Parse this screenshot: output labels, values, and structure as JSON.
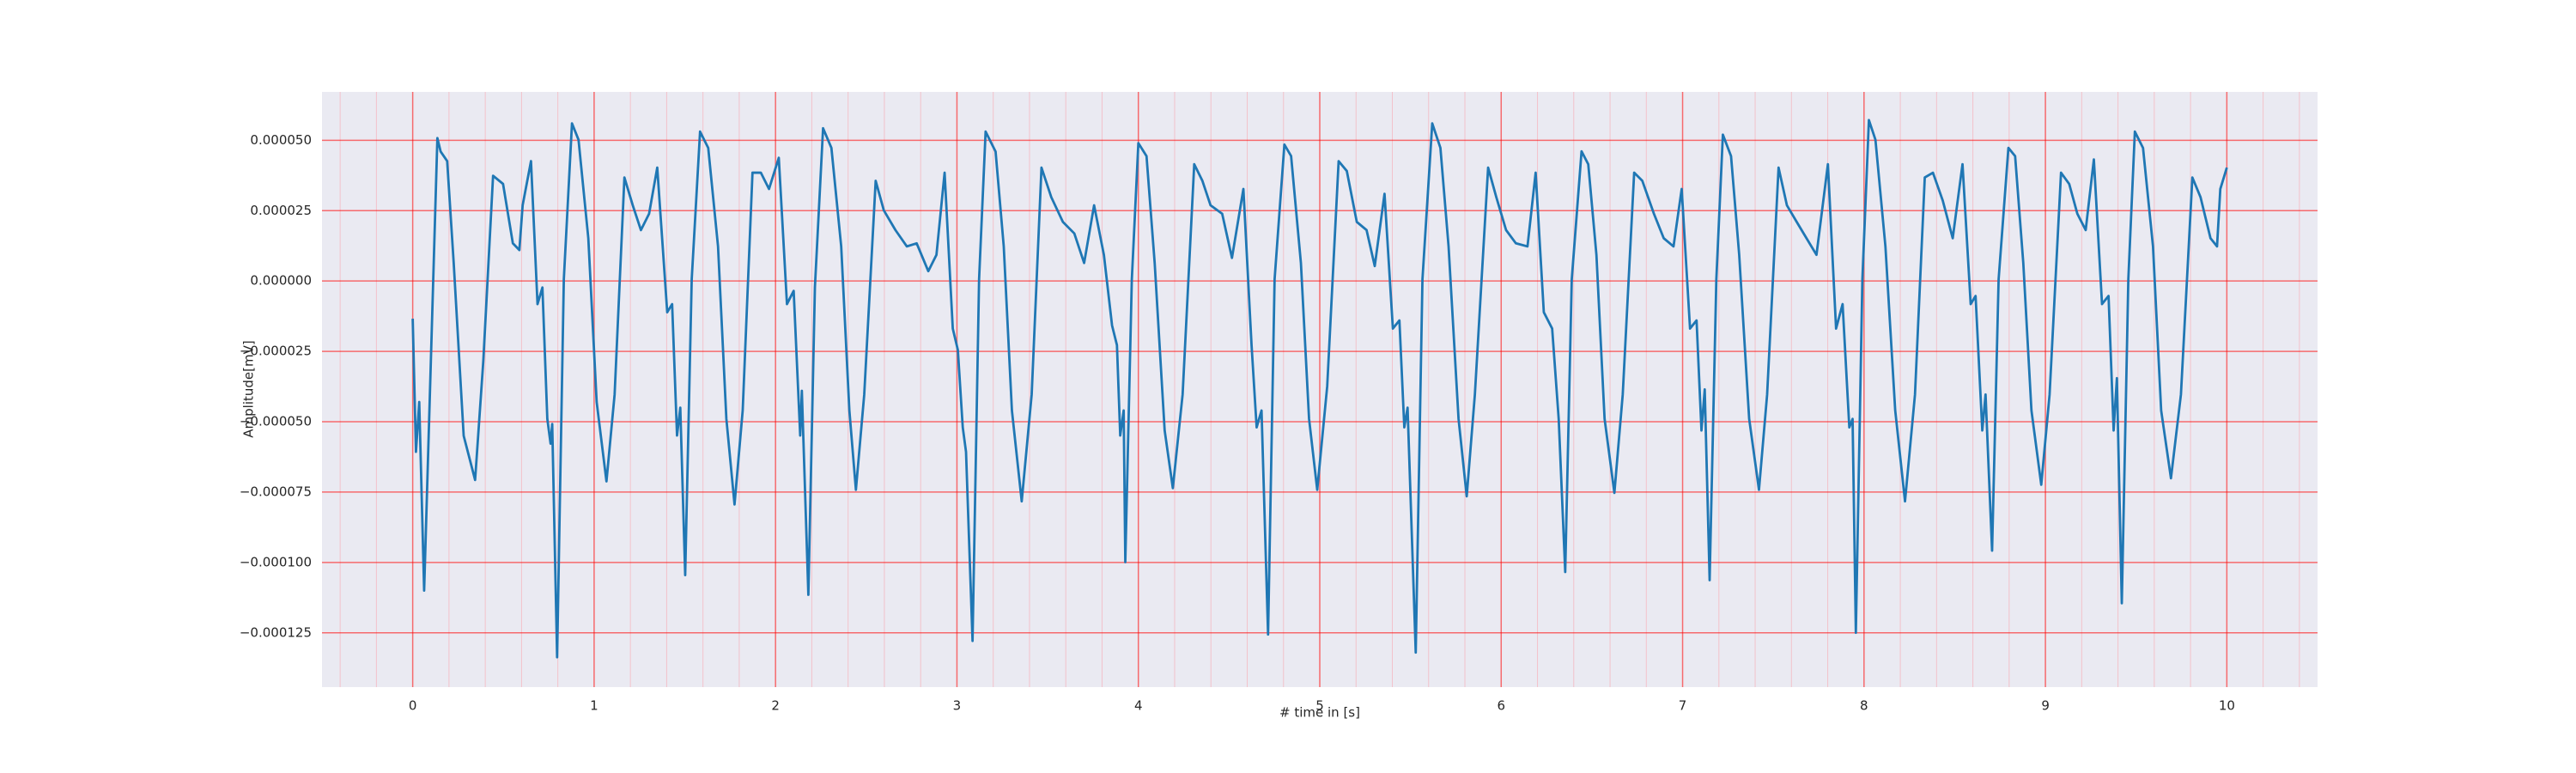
{
  "chart_data": {
    "type": "line",
    "xlabel": "# time in [s]",
    "ylabel": "Amplitude[mV]",
    "color": "#1f77b4",
    "grid": true,
    "minor_grid": true,
    "xlim": [
      -0.5,
      10.5
    ],
    "ylim": [
      -0.0001443,
      6.72e-05
    ],
    "xticks": [
      0,
      1,
      2,
      3,
      4,
      5,
      6,
      7,
      8,
      9,
      10
    ],
    "yticks": [
      {
        "value": 5e-05,
        "label": "0.000050"
      },
      {
        "value": 2.5e-05,
        "label": "0.000025"
      },
      {
        "value": 0,
        "label": "0.000000"
      },
      {
        "value": -2.5e-05,
        "label": "−0.000025"
      },
      {
        "value": -5e-05,
        "label": "−0.000050"
      },
      {
        "value": -7.5e-05,
        "label": "−0.000075"
      },
      {
        "value": -0.0001,
        "label": "−0.000100"
      },
      {
        "value": -0.000125,
        "label": "−0.000125"
      }
    ],
    "x": [
      0,
      0.018,
      0.036,
      0.063,
      0.1,
      0.136,
      0.154,
      0.19,
      0.226,
      0.281,
      0.344,
      0.389,
      0.443,
      0.498,
      0.552,
      0.588,
      0.606,
      0.652,
      0.688,
      0.715,
      0.742,
      0.76,
      0.769,
      0.796,
      0.833,
      0.878,
      0.914,
      0.968,
      1.014,
      1.068,
      1.113,
      1.167,
      1.213,
      1.258,
      1.303,
      1.348,
      1.403,
      1.43,
      1.457,
      1.475,
      1.502,
      1.538,
      1.584,
      1.629,
      1.683,
      1.729,
      1.774,
      1.819,
      1.873,
      1.919,
      1.964,
      2.018,
      2.063,
      2.1,
      2.136,
      2.145,
      2.181,
      2.217,
      2.262,
      2.308,
      2.362,
      2.407,
      2.443,
      2.489,
      2.552,
      2.597,
      2.661,
      2.724,
      2.778,
      2.842,
      2.887,
      2.932,
      2.977,
      3.005,
      3.032,
      3.05,
      3.086,
      3.122,
      3.158,
      3.213,
      3.258,
      3.303,
      3.357,
      3.412,
      3.466,
      3.52,
      3.584,
      3.647,
      3.701,
      3.756,
      3.81,
      3.855,
      3.882,
      3.9,
      3.919,
      3.928,
      3.964,
      4,
      4.045,
      4.09,
      4.145,
      4.19,
      4.244,
      4.308,
      4.353,
      4.398,
      4.462,
      4.516,
      4.579,
      4.624,
      4.652,
      4.679,
      4.715,
      4.751,
      4.805,
      4.842,
      4.896,
      4.941,
      4.986,
      5.041,
      5.104,
      5.149,
      5.204,
      5.258,
      5.303,
      5.357,
      5.403,
      5.439,
      5.466,
      5.484,
      5.529,
      5.566,
      5.62,
      5.665,
      5.71,
      5.765,
      5.81,
      5.855,
      5.928,
      5.973,
      6.027,
      6.081,
      6.145,
      6.19,
      6.235,
      6.281,
      6.317,
      6.353,
      6.389,
      6.443,
      6.48,
      6.525,
      6.57,
      6.624,
      6.67,
      6.733,
      6.778,
      6.842,
      6.896,
      6.95,
      6.995,
      7.041,
      7.077,
      7.104,
      7.122,
      7.149,
      7.186,
      7.222,
      7.267,
      7.312,
      7.367,
      7.421,
      7.466,
      7.529,
      7.575,
      7.629,
      7.683,
      7.738,
      7.801,
      7.846,
      7.882,
      7.919,
      7.937,
      7.955,
      7.991,
      8.027,
      8.063,
      8.118,
      8.172,
      8.226,
      8.281,
      8.335,
      8.38,
      8.434,
      8.489,
      8.543,
      8.588,
      8.615,
      8.652,
      8.67,
      8.706,
      8.742,
      8.796,
      8.833,
      8.878,
      8.923,
      8.977,
      9.023,
      9.086,
      9.131,
      9.176,
      9.222,
      9.267,
      9.312,
      9.348,
      9.376,
      9.394,
      9.421,
      9.457,
      9.493,
      9.538,
      9.593,
      9.638,
      9.692,
      9.747,
      9.81,
      9.855,
      9.91,
      9.946,
      9.964,
      10
    ],
    "values": [
      -1.34e-05,
      -6.07e-05,
      -4.3e-05,
      -0.00011,
      -2.86e-05,
      5.08e-05,
      4.6e-05,
      4.26e-05,
      6.4e-06,
      -5.5e-05,
      -7.07e-05,
      -2.86e-05,
      3.74e-05,
      3.45e-05,
      1.34e-05,
      1.1e-05,
      2.69e-05,
      4.26e-05,
      -8.2e-06,
      -2.3e-06,
      -4.9e-05,
      -5.78e-05,
      -5.08e-05,
      -0.0001337,
      6e-07,
      5.6e-05,
      5.02e-05,
      1.52e-05,
      -4.3e-05,
      -7.12e-05,
      -4.03e-05,
      3.68e-05,
      2.69e-05,
      1.81e-05,
      2.39e-05,
      4.03e-05,
      -1.11e-05,
      -8.2e-06,
      -5.49e-05,
      -4.5e-05,
      -0.0001045,
      6e-07,
      5.31e-05,
      4.73e-05,
      1.23e-05,
      -4.9e-05,
      -7.94e-05,
      -4.6e-05,
      3.85e-05,
      3.85e-05,
      3.27e-05,
      4.38e-05,
      -8.2e-06,
      -3.5e-06,
      -5.49e-05,
      -3.9e-05,
      -0.0001115,
      -2.3e-06,
      5.43e-05,
      4.73e-05,
      1.23e-05,
      -4.6e-05,
      -7.42e-05,
      -4.03e-05,
      3.56e-05,
      2.51e-05,
      1.81e-05,
      1.23e-05,
      1.34e-05,
      3.5e-06,
      9.3e-06,
      3.85e-05,
      -1.69e-05,
      -2.45e-05,
      -5.2e-05,
      -6.07e-05,
      -0.0001279,
      6e-07,
      5.31e-05,
      4.6e-05,
      1.23e-05,
      -4.6e-05,
      -7.83e-05,
      -4.03e-05,
      4.03e-05,
      2.98e-05,
      2.1e-05,
      1.69e-05,
      6.4e-06,
      2.69e-05,
      9.3e-06,
      -1.58e-05,
      -2.28e-05,
      -5.49e-05,
      -4.6e-05,
      -9.99e-05,
      6e-07,
      4.9e-05,
      4.44e-05,
      6.4e-06,
      -5.31e-05,
      -7.36e-05,
      -4.03e-05,
      4.15e-05,
      3.56e-05,
      2.69e-05,
      2.39e-05,
      8.2e-06,
      3.27e-05,
      -2.28e-05,
      -5.2e-05,
      -4.6e-05,
      -0.0001256,
      6e-07,
      4.85e-05,
      4.44e-05,
      6.4e-06,
      -4.9e-05,
      -7.42e-05,
      -3.74e-05,
      4.26e-05,
      3.91e-05,
      2.1e-05,
      1.81e-05,
      5.3e-06,
      3.1e-05,
      -1.69e-05,
      -1.4e-05,
      -5.2e-05,
      -4.5e-05,
      -0.000132,
      6e-07,
      5.6e-05,
      4.73e-05,
      1.23e-05,
      -4.9e-05,
      -7.65e-05,
      -4.03e-05,
      4.03e-05,
      2.98e-05,
      1.81e-05,
      1.34e-05,
      1.23e-05,
      3.85e-05,
      -1.11e-05,
      -1.69e-05,
      -4.9e-05,
      -0.0001034,
      6e-07,
      4.61e-05,
      4.15e-05,
      9.3e-06,
      -4.9e-05,
      -7.53e-05,
      -4.03e-05,
      3.85e-05,
      3.56e-05,
      2.39e-05,
      1.52e-05,
      1.23e-05,
      3.27e-05,
      -1.69e-05,
      -1.4e-05,
      -5.31e-05,
      -3.85e-05,
      -0.0001063,
      6e-07,
      5.2e-05,
      4.44e-05,
      9.3e-06,
      -4.9e-05,
      -7.42e-05,
      -4.03e-05,
      4.03e-05,
      2.69e-05,
      2.1e-05,
      1.52e-05,
      9.3e-06,
      4.15e-05,
      -1.69e-05,
      -8.2e-06,
      -5.2e-05,
      -4.9e-05,
      -0.000125,
      6e-07,
      5.72e-05,
      5.02e-05,
      1.23e-05,
      -4.6e-05,
      -7.83e-05,
      -4.03e-05,
      3.68e-05,
      3.85e-05,
      2.86e-05,
      1.52e-05,
      4.15e-05,
      -8.2e-06,
      -5.3e-06,
      -5.31e-05,
      -4.03e-05,
      -9.58e-05,
      6e-07,
      4.73e-05,
      4.44e-05,
      6.4e-06,
      -4.6e-05,
      -7.24e-05,
      -4.03e-05,
      3.85e-05,
      3.45e-05,
      2.39e-05,
      1.81e-05,
      4.32e-05,
      -8.2e-06,
      -5.3e-06,
      -5.31e-05,
      -3.45e-05,
      -0.0001145,
      6e-07,
      5.31e-05,
      4.73e-05,
      1.23e-05,
      -4.6e-05,
      -7.01e-05,
      -4.03e-05,
      3.68e-05,
      2.98e-05,
      1.52e-05,
      1.23e-05,
      3.27e-05,
      4.03e-05
    ]
  }
}
